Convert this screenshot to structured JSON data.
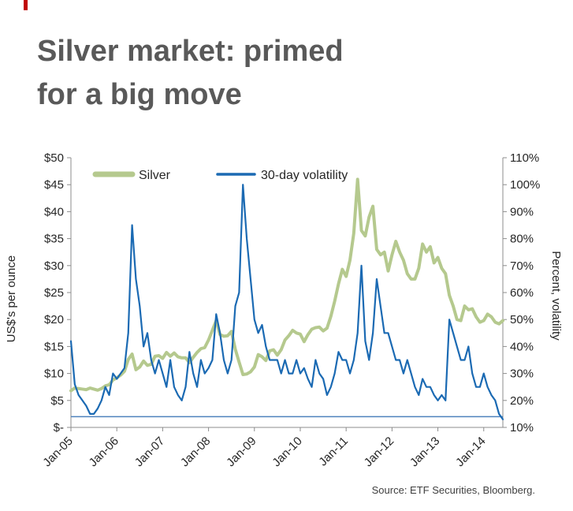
{
  "title": {
    "line1": "Silver market: primed",
    "line2": "for a big move"
  },
  "source": "Source: ETF Securities, Bloomberg.",
  "accent_color": "#c00000",
  "chart_data": {
    "type": "line",
    "title": "Silver market: primed for a big move",
    "legend_position": "top-left",
    "grid": false,
    "x_start": "Jan-05",
    "x_interval": "monthly",
    "x_ticks": [
      {
        "i": 0,
        "label": "Jan-05"
      },
      {
        "i": 12,
        "label": "Jan-06"
      },
      {
        "i": 24,
        "label": "Jan-07"
      },
      {
        "i": 36,
        "label": "Jan-08"
      },
      {
        "i": 48,
        "label": "Jan-09"
      },
      {
        "i": 60,
        "label": "Jan-10"
      },
      {
        "i": 72,
        "label": "Jan-11"
      },
      {
        "i": 84,
        "label": "Jan-12"
      },
      {
        "i": 96,
        "label": "Jan-13"
      },
      {
        "i": 108,
        "label": "Jan-14"
      }
    ],
    "left_axis": {
      "title": "US$'s per ounce",
      "min": 0,
      "max": 50,
      "ticks": [
        {
          "v": 50,
          "label": "$50"
        },
        {
          "v": 45,
          "label": "$45"
        },
        {
          "v": 40,
          "label": "$40"
        },
        {
          "v": 35,
          "label": "$35"
        },
        {
          "v": 30,
          "label": "$30"
        },
        {
          "v": 25,
          "label": "$25"
        },
        {
          "v": 20,
          "label": "$20"
        },
        {
          "v": 15,
          "label": "$15"
        },
        {
          "v": 10,
          "label": "$10"
        },
        {
          "v": 5,
          "label": "$5"
        },
        {
          "v": 0,
          "label": "$-"
        }
      ]
    },
    "right_axis": {
      "title": "Percent, volatility",
      "min": 10,
      "max": 110,
      "ticks": [
        {
          "v": 110,
          "label": "110%"
        },
        {
          "v": 100,
          "label": "100%"
        },
        {
          "v": 90,
          "label": "90%"
        },
        {
          "v": 80,
          "label": "80%"
        },
        {
          "v": 70,
          "label": "70%"
        },
        {
          "v": 60,
          "label": "60%"
        },
        {
          "v": 50,
          "label": "50%"
        },
        {
          "v": 40,
          "label": "40%"
        },
        {
          "v": 30,
          "label": "30%"
        },
        {
          "v": 20,
          "label": "20%"
        },
        {
          "v": 10,
          "label": "10%"
        }
      ]
    },
    "baseline": {
      "axis": "right",
      "value": 14,
      "color": "#4f81bd",
      "width": 1.5
    },
    "series": [
      {
        "name": "Silver",
        "axis": "left",
        "color": "#b5c98e",
        "width": 4,
        "values": [
          6.8,
          7.3,
          7.2,
          7.1,
          7.0,
          7.3,
          7.1,
          6.9,
          7.2,
          7.7,
          7.9,
          8.8,
          9.2,
          9.7,
          10.4,
          12.6,
          13.6,
          10.7,
          11.2,
          12.3,
          11.5,
          11.7,
          13.2,
          13.3,
          12.8,
          13.9,
          13.2,
          13.8,
          13.1,
          12.9,
          12.9,
          12.0,
          13.0,
          13.9,
          14.6,
          14.8,
          16.2,
          18.0,
          19.8,
          17.2,
          16.9,
          17.0,
          17.8,
          14.5,
          12.1,
          9.8,
          9.9,
          10.3,
          11.2,
          13.5,
          13.1,
          12.4,
          14.2,
          14.4,
          13.4,
          14.4,
          16.2,
          17.0,
          18.0,
          17.5,
          17.3,
          15.9,
          17.2,
          18.2,
          18.5,
          18.6,
          17.9,
          18.4,
          20.6,
          23.4,
          26.6,
          29.3,
          28.0,
          31.0,
          36.0,
          46.0,
          36.5,
          35.5,
          39.0,
          41.0,
          33.0,
          32.0,
          32.5,
          29.0,
          32.0,
          34.5,
          32.5,
          31.0,
          28.5,
          27.5,
          27.5,
          29.5,
          34.0,
          32.5,
          33.5,
          30.5,
          31.5,
          29.5,
          28.5,
          24.5,
          22.5,
          20.0,
          19.8,
          22.5,
          21.8,
          22.0,
          20.5,
          19.5,
          19.8,
          21.0,
          20.5,
          19.5,
          19.2,
          19.8
        ]
      },
      {
        "name": "30-day volatility",
        "axis": "right",
        "color": "#1b6ab3",
        "width": 2.2,
        "values": [
          42,
          26,
          22,
          20,
          18,
          15,
          15,
          17,
          20,
          25,
          22,
          30,
          28,
          30,
          32,
          45,
          85,
          65,
          55,
          40,
          45,
          35,
          30,
          35,
          30,
          25,
          35,
          25,
          22,
          20,
          25,
          38,
          30,
          25,
          35,
          30,
          32,
          35,
          52,
          45,
          35,
          30,
          35,
          55,
          60,
          100,
          80,
          65,
          50,
          45,
          48,
          40,
          35,
          35,
          35,
          30,
          35,
          30,
          30,
          35,
          30,
          32,
          28,
          25,
          35,
          30,
          28,
          22,
          25,
          30,
          38,
          35,
          35,
          30,
          35,
          45,
          70,
          42,
          35,
          45,
          65,
          55,
          45,
          45,
          40,
          35,
          35,
          30,
          35,
          30,
          25,
          22,
          28,
          25,
          25,
          22,
          20,
          22,
          20,
          50,
          45,
          40,
          35,
          35,
          40,
          30,
          25,
          25,
          30,
          25,
          22,
          20,
          15,
          13
        ]
      }
    ]
  }
}
